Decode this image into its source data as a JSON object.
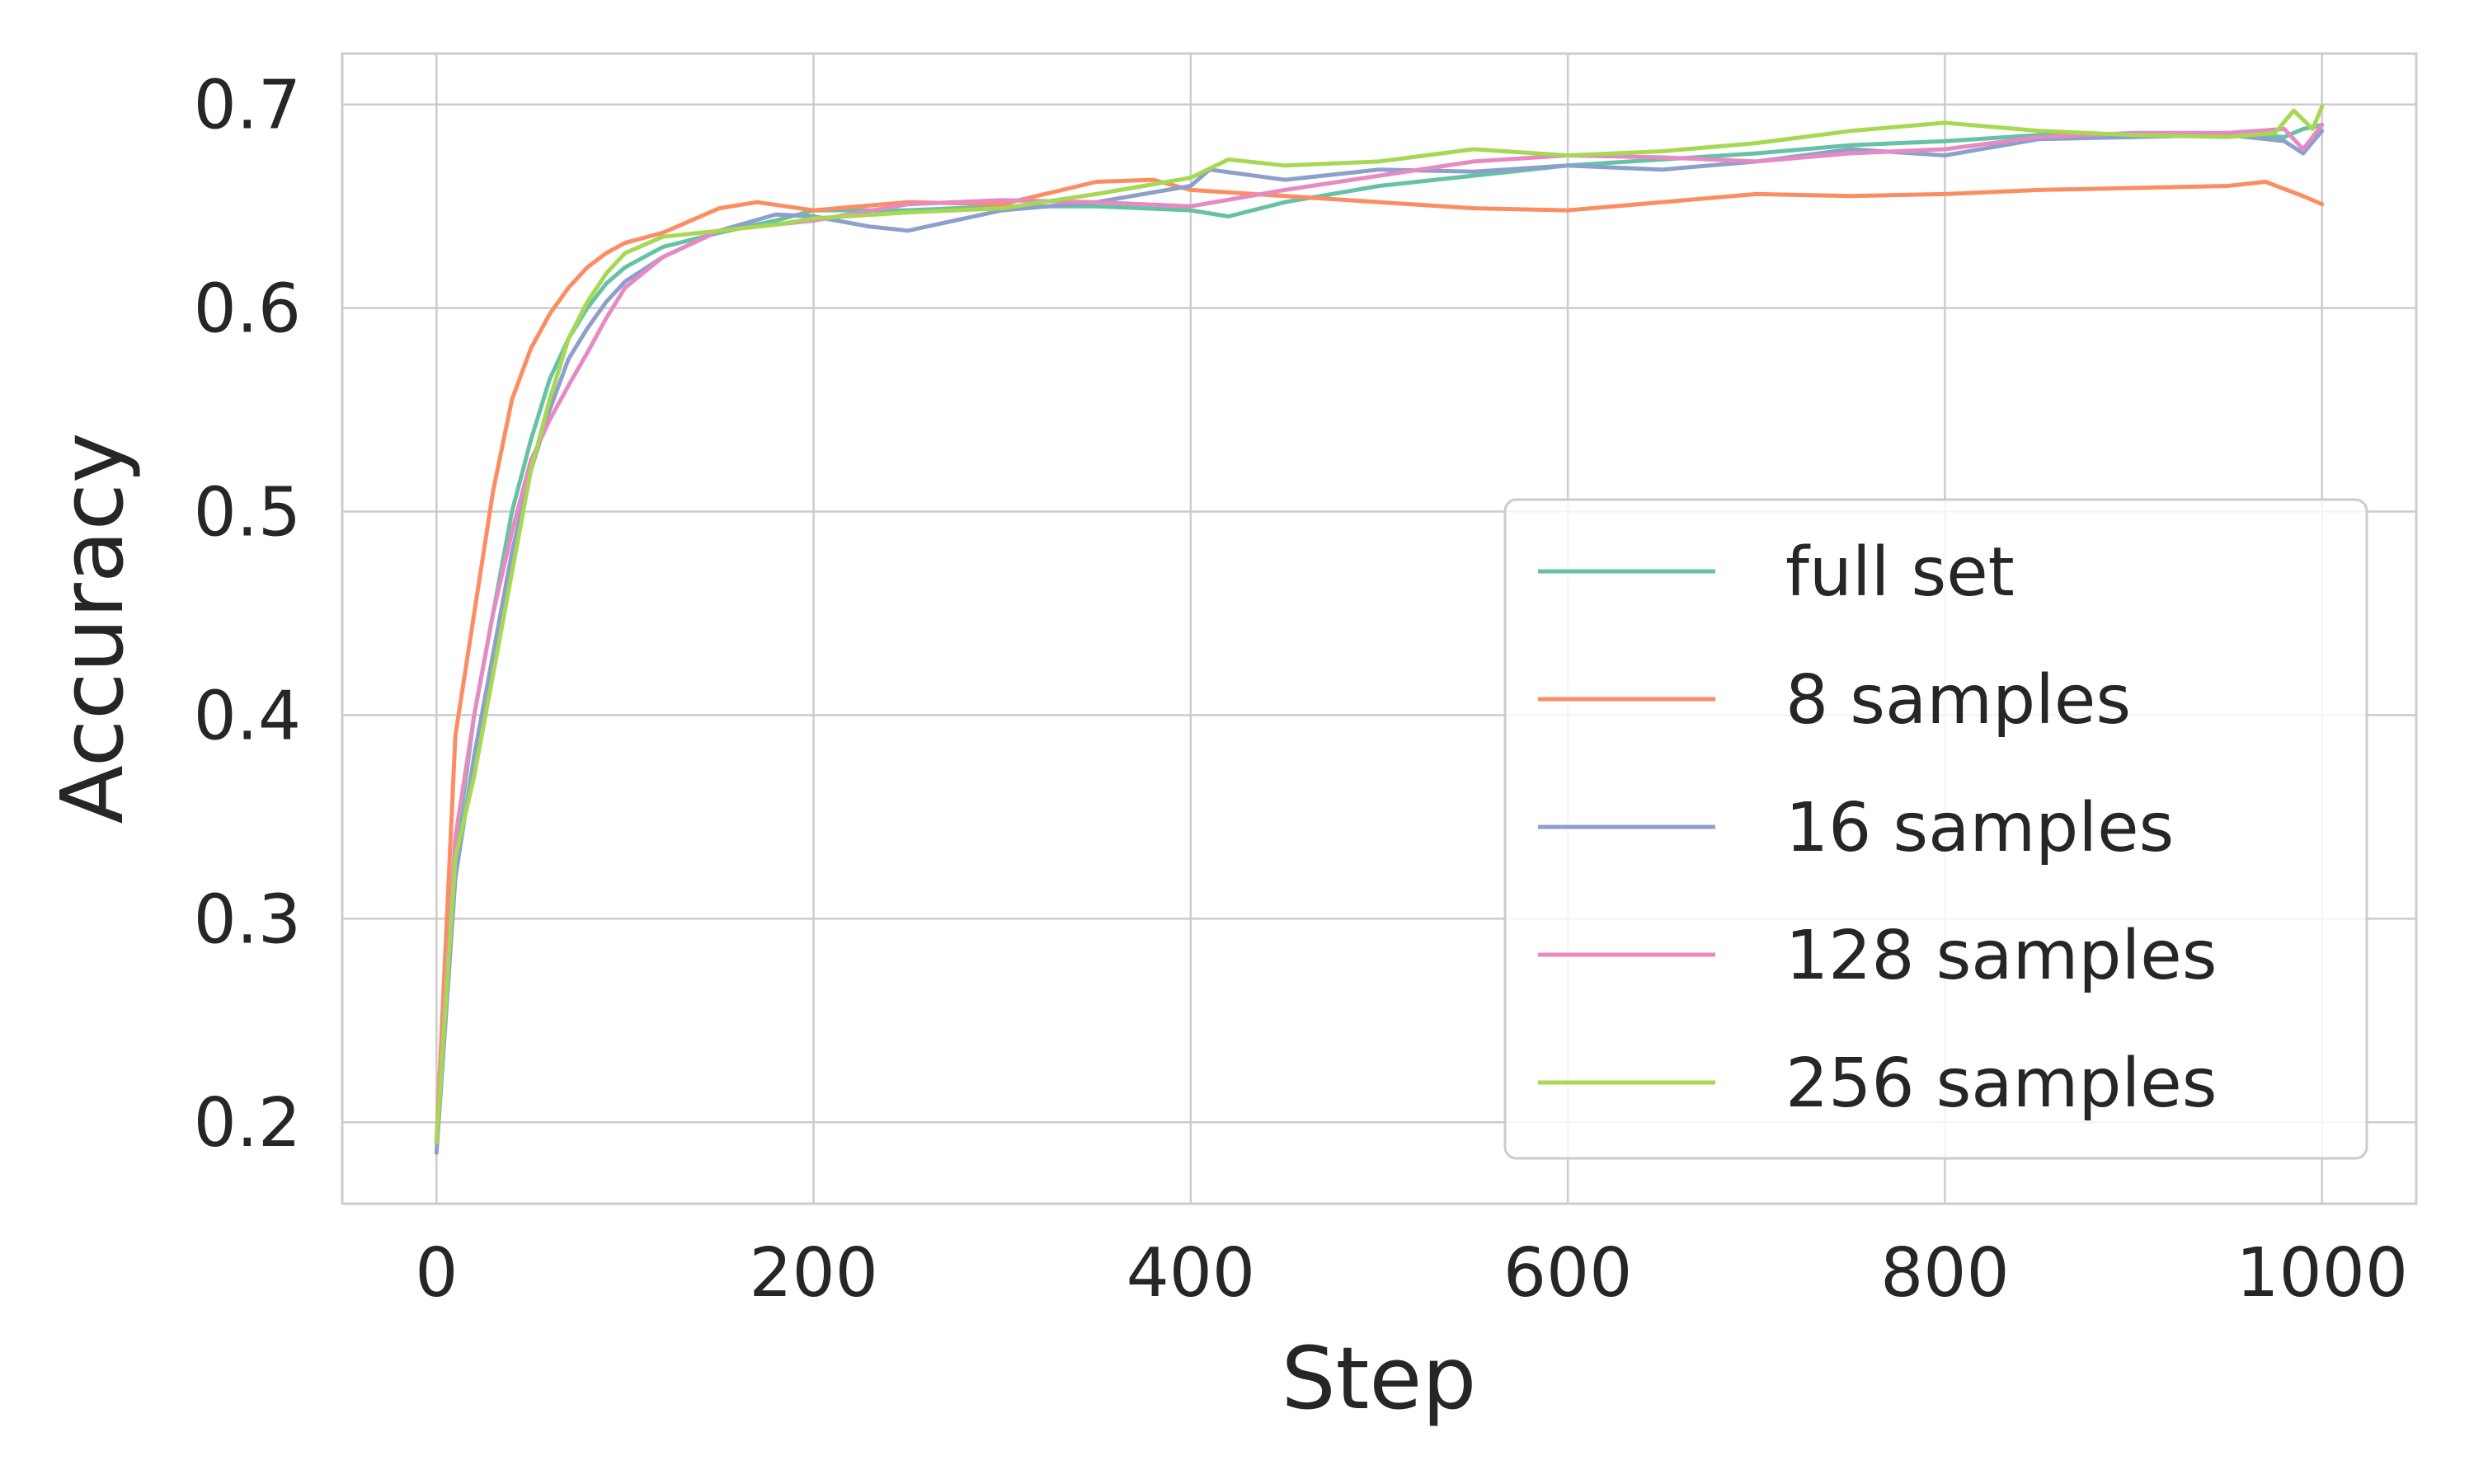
{
  "chart_data": {
    "type": "line",
    "title": "",
    "xlabel": "Step",
    "ylabel": "Accuracy",
    "xlim": [
      -50,
      1050
    ],
    "ylim": [
      0.16,
      0.725
    ],
    "xticks": [
      0,
      200,
      400,
      600,
      800,
      1000
    ],
    "xtick_labels": [
      "0",
      "200",
      "400",
      "600",
      "800",
      "1000"
    ],
    "yticks": [
      0.2,
      0.3,
      0.4,
      0.5,
      0.6,
      0.7
    ],
    "ytick_labels": [
      "0.2",
      "0.3",
      "0.4",
      "0.5",
      "0.6",
      "0.7"
    ],
    "grid": true,
    "legend_position": "lower-right",
    "series": [
      {
        "name": "full set",
        "color": "#66c2a5",
        "x": [
          0,
          10,
          20,
          30,
          40,
          50,
          60,
          70,
          80,
          90,
          100,
          120,
          150,
          180,
          200,
          250,
          300,
          350,
          400,
          420,
          450,
          500,
          550,
          600,
          650,
          700,
          750,
          800,
          850,
          900,
          950,
          980,
          990,
          1000
        ],
        "y": [
          0.19,
          0.33,
          0.4,
          0.45,
          0.5,
          0.535,
          0.565,
          0.585,
          0.6,
          0.612,
          0.62,
          0.63,
          0.637,
          0.643,
          0.648,
          0.648,
          0.65,
          0.65,
          0.648,
          0.645,
          0.652,
          0.66,
          0.665,
          0.67,
          0.673,
          0.676,
          0.68,
          0.682,
          0.685,
          0.684,
          0.686,
          0.684,
          0.688,
          0.69
        ]
      },
      {
        "name": "8 samples",
        "color": "#fc8d62",
        "x": [
          0,
          10,
          20,
          30,
          40,
          50,
          60,
          70,
          80,
          90,
          100,
          120,
          150,
          170,
          200,
          250,
          300,
          350,
          380,
          400,
          450,
          500,
          550,
          600,
          650,
          700,
          750,
          800,
          850,
          900,
          950,
          970,
          990,
          1000
        ],
        "y": [
          0.19,
          0.39,
          0.45,
          0.51,
          0.555,
          0.58,
          0.597,
          0.61,
          0.62,
          0.627,
          0.632,
          0.637,
          0.649,
          0.652,
          0.648,
          0.652,
          0.651,
          0.662,
          0.663,
          0.658,
          0.655,
          0.652,
          0.649,
          0.648,
          0.652,
          0.656,
          0.655,
          0.656,
          0.658,
          0.659,
          0.66,
          0.662,
          0.655,
          0.651
        ]
      },
      {
        "name": "16 samples",
        "color": "#8da0cb",
        "x": [
          0,
          10,
          20,
          30,
          40,
          50,
          60,
          70,
          80,
          90,
          100,
          120,
          150,
          180,
          200,
          230,
          250,
          300,
          350,
          400,
          410,
          450,
          500,
          550,
          600,
          650,
          700,
          750,
          800,
          850,
          900,
          950,
          980,
          990,
          1000
        ],
        "y": [
          0.185,
          0.32,
          0.38,
          0.43,
          0.48,
          0.52,
          0.55,
          0.575,
          0.59,
          0.603,
          0.613,
          0.625,
          0.638,
          0.646,
          0.645,
          0.64,
          0.638,
          0.648,
          0.652,
          0.66,
          0.668,
          0.663,
          0.668,
          0.667,
          0.67,
          0.668,
          0.672,
          0.678,
          0.675,
          0.683,
          0.684,
          0.685,
          0.682,
          0.676,
          0.687
        ]
      },
      {
        "name": "128 samples",
        "color": "#e78ac3",
        "x": [
          0,
          10,
          20,
          30,
          40,
          50,
          60,
          70,
          80,
          90,
          100,
          120,
          150,
          180,
          200,
          250,
          300,
          350,
          400,
          450,
          500,
          550,
          600,
          650,
          700,
          750,
          800,
          850,
          900,
          950,
          980,
          990,
          1000
        ],
        "y": [
          0.19,
          0.34,
          0.4,
          0.45,
          0.49,
          0.525,
          0.545,
          0.562,
          0.578,
          0.595,
          0.61,
          0.625,
          0.638,
          0.641,
          0.643,
          0.651,
          0.653,
          0.652,
          0.65,
          0.658,
          0.665,
          0.672,
          0.675,
          0.674,
          0.672,
          0.676,
          0.678,
          0.684,
          0.686,
          0.686,
          0.688,
          0.678,
          0.69
        ]
      },
      {
        "name": "256 samples",
        "color": "#a6d854",
        "x": [
          0,
          10,
          20,
          30,
          40,
          50,
          60,
          70,
          80,
          90,
          100,
          120,
          150,
          180,
          200,
          250,
          300,
          350,
          400,
          420,
          450,
          500,
          550,
          600,
          650,
          700,
          750,
          800,
          850,
          900,
          950,
          975,
          985,
          995,
          1000
        ],
        "y": [
          0.19,
          0.33,
          0.37,
          0.42,
          0.47,
          0.52,
          0.555,
          0.585,
          0.603,
          0.617,
          0.627,
          0.635,
          0.638,
          0.641,
          0.644,
          0.647,
          0.649,
          0.656,
          0.664,
          0.673,
          0.67,
          0.672,
          0.678,
          0.675,
          0.677,
          0.681,
          0.687,
          0.691,
          0.687,
          0.685,
          0.684,
          0.686,
          0.697,
          0.688,
          0.699
        ]
      }
    ]
  }
}
